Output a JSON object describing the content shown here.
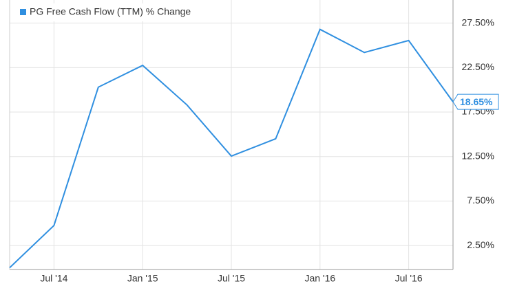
{
  "chart_data": {
    "type": "line",
    "categories": [
      null,
      "Jul '14",
      null,
      "Jan '15",
      null,
      "Jul '15",
      null,
      "Jan '16",
      null,
      "Jul '16",
      null
    ],
    "series": [
      {
        "name": "PG Free Cash Flow (TTM) % Change",
        "color": "#2f8fe0",
        "values": [
          0.0,
          4.75,
          20.3,
          22.75,
          18.3,
          12.55,
          14.5,
          26.8,
          24.2,
          25.55,
          18.65
        ],
        "value_labels": [
          null,
          null,
          null,
          null,
          null,
          null,
          null,
          null,
          null,
          null,
          "18.65%"
        ]
      }
    ],
    "ylim": [
      -0.2,
      30.1
    ],
    "yticks": [
      {
        "value": 2.5,
        "label": "2.50%"
      },
      {
        "value": 7.5,
        "label": "7.50%"
      },
      {
        "value": 12.5,
        "label": "12.50%"
      },
      {
        "value": 17.5,
        "label": "17.50%"
      },
      {
        "value": 22.5,
        "label": "22.50%"
      },
      {
        "value": 27.5,
        "label": "27.50%"
      }
    ],
    "grid": true,
    "legend": "top-left"
  }
}
